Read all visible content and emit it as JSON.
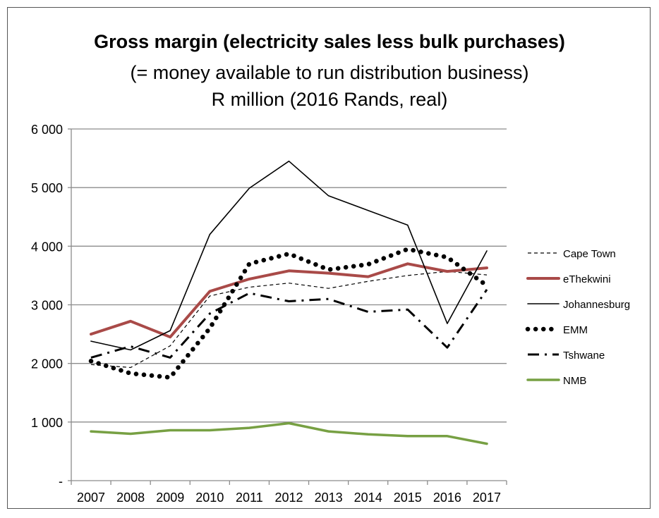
{
  "chart_data": {
    "type": "line",
    "title": "Gross margin (electricity sales less bulk purchases)",
    "subtitle": [
      "(= money available to run distribution business)",
      "R million (2016 Rands, real)"
    ],
    "xlabel": "",
    "ylabel": "",
    "x": [
      "2007",
      "2008",
      "2009",
      "2010",
      "2011",
      "2012",
      "2013",
      "2014",
      "2015",
      "2016",
      "2017"
    ],
    "ylim": [
      0,
      6000
    ],
    "yticks": [
      0,
      1000,
      2000,
      3000,
      4000,
      5000,
      6000
    ],
    "ytick_labels": [
      "-",
      "1 000",
      "2 000",
      "3 000",
      "4 000",
      "5 000",
      "6 000"
    ],
    "grid": "horizontal",
    "legend_position": "right",
    "series": [
      {
        "name": "Cape Town",
        "style": "dashed",
        "color": "#000000",
        "values": [
          1980,
          1930,
          2300,
          3150,
          3300,
          3370,
          3280,
          3400,
          3500,
          3570,
          3510
        ]
      },
      {
        "name": "eThekwini",
        "style": "solid-thick",
        "color": "#a94a48",
        "values": [
          2500,
          2720,
          2450,
          3230,
          3440,
          3580,
          3540,
          3480,
          3700,
          3570,
          3630
        ]
      },
      {
        "name": "Johannesburg",
        "style": "solid-thin",
        "color": "#000000",
        "values": [
          2380,
          2230,
          2560,
          4200,
          4990,
          5450,
          4860,
          4610,
          4360,
          2680,
          3920
        ]
      },
      {
        "name": "EMM",
        "style": "dotted",
        "color": "#000000",
        "values": [
          2040,
          1830,
          1760,
          2600,
          3700,
          3870,
          3600,
          3690,
          3950,
          3810,
          3330
        ]
      },
      {
        "name": "Tshwane",
        "style": "dash-dot",
        "color": "#000000",
        "values": [
          2100,
          2290,
          2100,
          2850,
          3200,
          3060,
          3100,
          2880,
          2920,
          2270,
          3260
        ]
      },
      {
        "name": "NMB",
        "style": "solid",
        "color": "#77a043",
        "values": [
          840,
          800,
          860,
          860,
          900,
          980,
          840,
          790,
          760,
          760,
          630
        ]
      }
    ]
  }
}
